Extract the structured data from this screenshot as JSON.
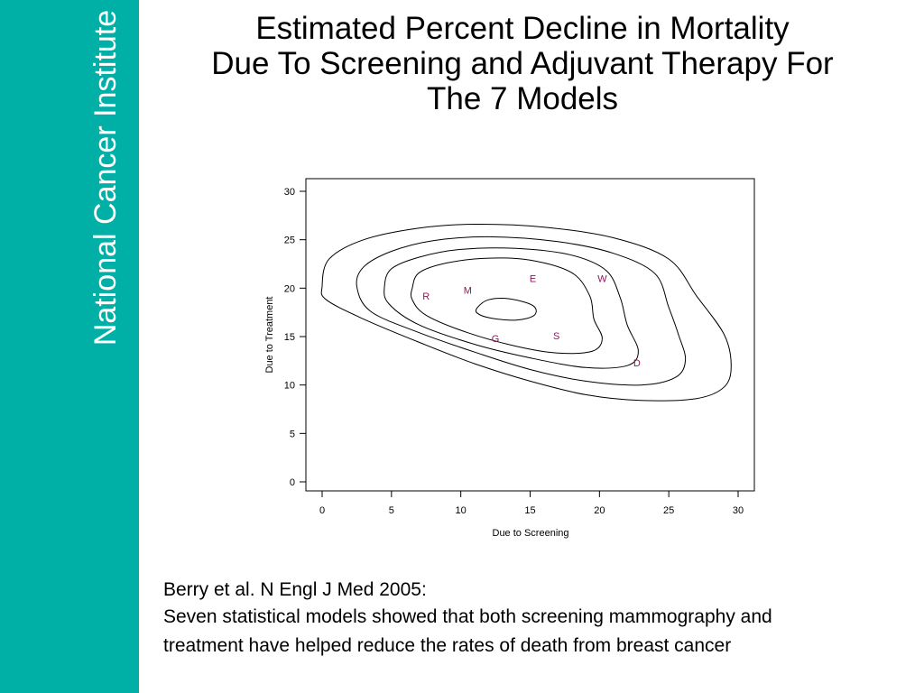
{
  "sidebar": {
    "text": "National Cancer Institute",
    "color": "#00b0a6"
  },
  "slide": {
    "title_lines": [
      "Estimated Percent Decline in Mortality",
      "Due To Screening and Adjuvant Therapy For",
      "The 7 Models"
    ],
    "caption_lines": [
      "Berry et al. N Engl J Med 2005:",
      "Seven statistical models showed that both screening mammography and",
      "treatment have helped reduce the rates of death from breast cancer"
    ]
  },
  "chart_data": {
    "type": "scatter",
    "xlabel": "Due to Screening",
    "ylabel": "Due to Treatment",
    "xlim": [
      0,
      30
    ],
    "ylim": [
      0,
      30
    ],
    "xticks": [
      0,
      5,
      10,
      15,
      20,
      25,
      30
    ],
    "yticks": [
      0,
      5,
      10,
      15,
      20,
      25,
      30
    ],
    "grid": false,
    "point_color": "#8b1a5a",
    "points": [
      {
        "label": "R",
        "x": 7.5,
        "y": 19.2
      },
      {
        "label": "M",
        "x": 10.5,
        "y": 19.8
      },
      {
        "label": "E",
        "x": 15.2,
        "y": 21.0
      },
      {
        "label": "W",
        "x": 20.2,
        "y": 21.0
      },
      {
        "label": "G",
        "x": 12.5,
        "y": 14.8
      },
      {
        "label": "S",
        "x": 16.9,
        "y": 15.1
      },
      {
        "label": "D",
        "x": 22.7,
        "y": 12.3
      }
    ],
    "contours": [
      [
        [
          0.0,
          20.2
        ],
        [
          0.5,
          23.0
        ],
        [
          3,
          25.0
        ],
        [
          7,
          26.2
        ],
        [
          11,
          26.6
        ],
        [
          16,
          26.3
        ],
        [
          21,
          25.2
        ],
        [
          25,
          23.0
        ],
        [
          27,
          19.2
        ],
        [
          29,
          15.2
        ],
        [
          29.5,
          12.0
        ],
        [
          29,
          9.8
        ],
        [
          27,
          8.6
        ],
        [
          23,
          8.4
        ],
        [
          19,
          9.0
        ],
        [
          15,
          10.4
        ],
        [
          11,
          12.2
        ],
        [
          7,
          14.4
        ],
        [
          3,
          16.8
        ],
        [
          0.3,
          18.8
        ],
        [
          0.0,
          20.2
        ]
      ],
      [
        [
          2.5,
          20.2
        ],
        [
          3,
          22.2
        ],
        [
          5,
          23.8
        ],
        [
          8,
          24.9
        ],
        [
          12,
          25.3
        ],
        [
          17,
          24.8
        ],
        [
          21,
          23.6
        ],
        [
          24,
          21.5
        ],
        [
          25,
          18.0
        ],
        [
          25.7,
          15.2
        ],
        [
          26.2,
          12.6
        ],
        [
          25.5,
          10.8
        ],
        [
          23,
          10.0
        ],
        [
          19,
          10.4
        ],
        [
          15,
          11.6
        ],
        [
          11,
          13.4
        ],
        [
          7,
          15.4
        ],
        [
          3.5,
          17.6
        ],
        [
          2.5,
          20.2
        ]
      ],
      [
        [
          4.5,
          20.2
        ],
        [
          5,
          22.0
        ],
        [
          7,
          23.2
        ],
        [
          10,
          24.0
        ],
        [
          14,
          24.1
        ],
        [
          18,
          23.4
        ],
        [
          20.5,
          21.8
        ],
        [
          21.5,
          19.0
        ],
        [
          22,
          16.2
        ],
        [
          22.8,
          13.5
        ],
        [
          22,
          12.0
        ],
        [
          19,
          11.8
        ],
        [
          15,
          12.8
        ],
        [
          11,
          14.2
        ],
        [
          7,
          16.2
        ],
        [
          4.8,
          18.4
        ],
        [
          4.5,
          20.2
        ]
      ],
      [
        [
          6.5,
          20.0
        ],
        [
          7,
          21.6
        ],
        [
          9,
          22.6
        ],
        [
          12,
          23.1
        ],
        [
          15,
          22.9
        ],
        [
          18,
          21.6
        ],
        [
          19.3,
          19.2
        ],
        [
          19.6,
          16.8
        ],
        [
          20.2,
          14.8
        ],
        [
          19.5,
          13.5
        ],
        [
          17,
          13.3
        ],
        [
          14,
          14.0
        ],
        [
          10.5,
          15.4
        ],
        [
          7.5,
          17.2
        ],
        [
          6.5,
          18.8
        ],
        [
          6.5,
          20.0
        ]
      ],
      [
        [
          11.2,
          18.0
        ],
        [
          12,
          18.8
        ],
        [
          13.5,
          18.9
        ],
        [
          15.2,
          18.2
        ],
        [
          15.3,
          17.2
        ],
        [
          14,
          16.7
        ],
        [
          12.2,
          16.9
        ],
        [
          11.2,
          17.4
        ],
        [
          11.2,
          18.0
        ]
      ]
    ]
  }
}
